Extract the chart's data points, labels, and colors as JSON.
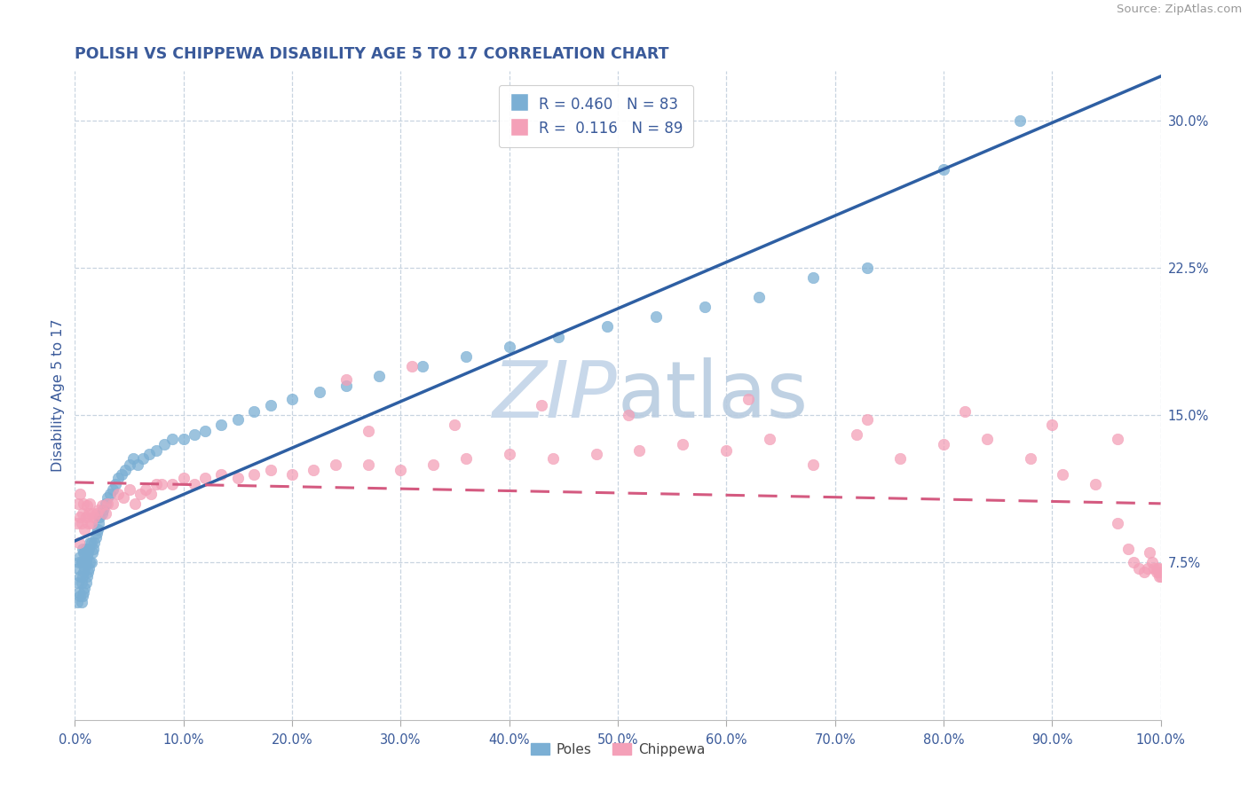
{
  "title": "POLISH VS CHIPPEWA DISABILITY AGE 5 TO 17 CORRELATION CHART",
  "source_text": "Source: ZipAtlas.com",
  "ylabel": "Disability Age 5 to 17",
  "xlim": [
    0.0,
    1.0
  ],
  "ylim": [
    -0.005,
    0.325
  ],
  "xticks": [
    0.0,
    0.1,
    0.2,
    0.3,
    0.4,
    0.5,
    0.6,
    0.7,
    0.8,
    0.9,
    1.0
  ],
  "xtick_labels": [
    "0.0%",
    "10.0%",
    "20.0%",
    "30.0%",
    "40.0%",
    "50.0%",
    "60.0%",
    "70.0%",
    "80.0%",
    "90.0%",
    "100.0%"
  ],
  "yticks": [
    0.075,
    0.15,
    0.225,
    0.3
  ],
  "ytick_labels": [
    "7.5%",
    "15.0%",
    "22.5%",
    "30.0%"
  ],
  "poles_color": "#7bafd4",
  "chippewa_color": "#f4a0b8",
  "poles_line_color": "#2e5fa3",
  "chippewa_line_color": "#d45a80",
  "chippewa_line_style": "dashed",
  "r_poles": 0.46,
  "n_poles": 83,
  "r_chippewa": 0.116,
  "n_chippewa": 89,
  "legend_label_poles": "Poles",
  "legend_label_chippewa": "Chippewa",
  "title_color": "#3a5a9a",
  "axis_label_color": "#3a5a9a",
  "tick_label_color": "#3a5a9a",
  "legend_r_color": "#3a5a9a",
  "watermark_color": "#c8d8ea",
  "background_color": "#ffffff",
  "grid_color": "#c8d4e0",
  "poles_scatter_x": [
    0.002,
    0.003,
    0.003,
    0.004,
    0.004,
    0.005,
    0.005,
    0.005,
    0.006,
    0.006,
    0.006,
    0.007,
    0.007,
    0.007,
    0.007,
    0.008,
    0.008,
    0.008,
    0.009,
    0.009,
    0.009,
    0.01,
    0.01,
    0.01,
    0.011,
    0.011,
    0.012,
    0.012,
    0.013,
    0.013,
    0.014,
    0.014,
    0.015,
    0.015,
    0.016,
    0.017,
    0.018,
    0.019,
    0.02,
    0.021,
    0.022,
    0.023,
    0.025,
    0.026,
    0.028,
    0.03,
    0.032,
    0.035,
    0.037,
    0.04,
    0.043,
    0.046,
    0.05,
    0.054,
    0.058,
    0.063,
    0.068,
    0.075,
    0.082,
    0.09,
    0.1,
    0.11,
    0.12,
    0.135,
    0.15,
    0.165,
    0.18,
    0.2,
    0.225,
    0.25,
    0.28,
    0.32,
    0.36,
    0.4,
    0.445,
    0.49,
    0.535,
    0.58,
    0.63,
    0.68,
    0.73,
    0.8,
    0.87
  ],
  "poles_scatter_y": [
    0.055,
    0.065,
    0.072,
    0.06,
    0.075,
    0.058,
    0.068,
    0.078,
    0.055,
    0.065,
    0.075,
    0.058,
    0.068,
    0.075,
    0.082,
    0.06,
    0.07,
    0.08,
    0.062,
    0.072,
    0.08,
    0.065,
    0.075,
    0.082,
    0.068,
    0.078,
    0.07,
    0.08,
    0.072,
    0.082,
    0.075,
    0.085,
    0.075,
    0.085,
    0.08,
    0.082,
    0.085,
    0.088,
    0.09,
    0.092,
    0.095,
    0.098,
    0.1,
    0.102,
    0.105,
    0.108,
    0.11,
    0.112,
    0.115,
    0.118,
    0.12,
    0.122,
    0.125,
    0.128,
    0.125,
    0.128,
    0.13,
    0.132,
    0.135,
    0.138,
    0.138,
    0.14,
    0.142,
    0.145,
    0.148,
    0.152,
    0.155,
    0.158,
    0.162,
    0.165,
    0.17,
    0.175,
    0.18,
    0.185,
    0.19,
    0.195,
    0.2,
    0.205,
    0.21,
    0.22,
    0.225,
    0.275,
    0.3
  ],
  "chippewa_scatter_x": [
    0.002,
    0.003,
    0.004,
    0.005,
    0.005,
    0.006,
    0.007,
    0.008,
    0.009,
    0.01,
    0.011,
    0.012,
    0.013,
    0.014,
    0.015,
    0.016,
    0.018,
    0.02,
    0.022,
    0.025,
    0.028,
    0.03,
    0.035,
    0.04,
    0.045,
    0.05,
    0.055,
    0.06,
    0.065,
    0.07,
    0.075,
    0.08,
    0.09,
    0.1,
    0.11,
    0.12,
    0.135,
    0.15,
    0.165,
    0.18,
    0.2,
    0.22,
    0.24,
    0.27,
    0.3,
    0.33,
    0.36,
    0.4,
    0.44,
    0.48,
    0.52,
    0.56,
    0.6,
    0.64,
    0.68,
    0.72,
    0.76,
    0.8,
    0.84,
    0.88,
    0.91,
    0.94,
    0.96,
    0.97,
    0.975,
    0.98,
    0.985,
    0.988,
    0.99,
    0.992,
    0.994,
    0.996,
    0.997,
    0.998,
    0.999,
    0.999,
    1.0,
    1.0,
    0.27,
    0.35,
    0.25,
    0.31,
    0.43,
    0.51,
    0.62,
    0.73,
    0.82,
    0.9,
    0.96
  ],
  "chippewa_scatter_y": [
    0.095,
    0.105,
    0.085,
    0.098,
    0.11,
    0.095,
    0.1,
    0.105,
    0.092,
    0.098,
    0.104,
    0.095,
    0.1,
    0.105,
    0.095,
    0.1,
    0.098,
    0.1,
    0.102,
    0.104,
    0.1,
    0.105,
    0.105,
    0.11,
    0.108,
    0.112,
    0.105,
    0.11,
    0.112,
    0.11,
    0.115,
    0.115,
    0.115,
    0.118,
    0.115,
    0.118,
    0.12,
    0.118,
    0.12,
    0.122,
    0.12,
    0.122,
    0.125,
    0.125,
    0.122,
    0.125,
    0.128,
    0.13,
    0.128,
    0.13,
    0.132,
    0.135,
    0.132,
    0.138,
    0.125,
    0.14,
    0.128,
    0.135,
    0.138,
    0.128,
    0.12,
    0.115,
    0.095,
    0.082,
    0.075,
    0.072,
    0.07,
    0.072,
    0.08,
    0.075,
    0.072,
    0.07,
    0.072,
    0.07,
    0.068,
    0.072,
    0.07,
    0.068,
    0.142,
    0.145,
    0.168,
    0.175,
    0.155,
    0.15,
    0.158,
    0.148,
    0.152,
    0.145,
    0.138
  ]
}
